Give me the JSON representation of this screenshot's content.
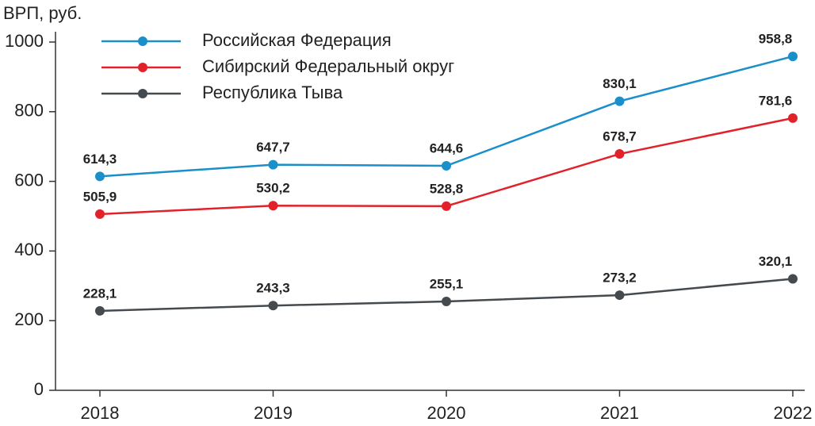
{
  "chart_data": {
    "type": "line",
    "y_axis_title": "ВРП, руб.",
    "categories": [
      "2018",
      "2019",
      "2020",
      "2021",
      "2022"
    ],
    "series": [
      {
        "name": "Российская Федерация",
        "color": "#1b8fca",
        "values": [
          614.3,
          647.7,
          644.6,
          830.1,
          958.8
        ],
        "value_labels": [
          "614,3",
          "647,7",
          "644,6",
          "830,1",
          "958,8"
        ]
      },
      {
        "name": "Сибирский Федеральный округ",
        "color": "#e1222b",
        "values": [
          505.9,
          530.2,
          528.8,
          678.7,
          781.6
        ],
        "value_labels": [
          "505,9",
          "530,2",
          "528,8",
          "678,7",
          "781,6"
        ]
      },
      {
        "name": "Республика Тыва",
        "color": "#454a4f",
        "values": [
          228.1,
          243.3,
          255.1,
          273.2,
          320.1
        ],
        "value_labels": [
          "228,1",
          "243,3",
          "255,1",
          "273,2",
          "320,1"
        ]
      }
    ],
    "ylim": [
      0,
      1000
    ],
    "yticks": [
      0,
      200,
      400,
      600,
      800,
      1000
    ],
    "grid": false,
    "legend": "top-left"
  }
}
